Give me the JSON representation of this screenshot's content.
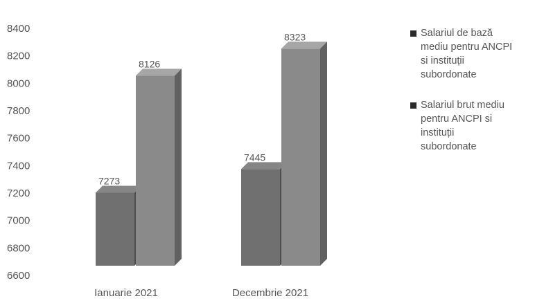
{
  "chart_data": {
    "type": "bar",
    "categories": [
      "Ianuarie 2021",
      "Decembrie 2021"
    ],
    "series": [
      {
        "name": "Salariul de bază\nmediu pentru ANCPI\nsi instituții\nsubordonate",
        "values": [
          7273,
          7445
        ],
        "color": "#707070"
      },
      {
        "name": "Salariul brut mediu\npentru ANCPI si\ninstituții\nsubordonate",
        "values": [
          8126,
          8323
        ],
        "color": "#8a8a8a"
      }
    ],
    "y_ticks": [
      "8400",
      "8200",
      "8000",
      "7800",
      "7600",
      "7400",
      "7200",
      "7000",
      "6800",
      "6600"
    ],
    "data_labels": [
      [
        "7273",
        "7445"
      ],
      [
        "8126",
        "8323"
      ]
    ],
    "ylim": [
      6600,
      8400
    ],
    "grid": false,
    "legend_position": "right",
    "style": "3d-columns"
  }
}
